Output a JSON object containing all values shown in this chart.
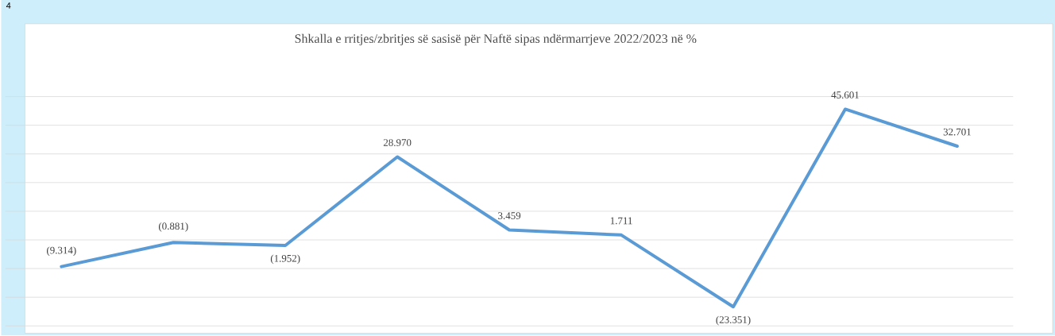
{
  "chart_data": {
    "type": "line",
    "title": "Shkalla e rritjes/zbritjes së sasisë për Naftë sipas ndërmarrjeve  2022/2023 në %",
    "annotations": [
      "4"
    ],
    "categories": [
      null,
      null,
      null,
      null,
      null,
      null,
      null,
      null,
      null
    ],
    "series": [
      {
        "color": "#5b9bd5",
        "values": [
          -9.314,
          -0.881,
          -1.952,
          28.97,
          3.459,
          1.711,
          -23.351,
          45.601,
          32.701
        ],
        "value_labels": [
          "(9.314)",
          "(0.881)",
          "(1.952)",
          "28.970",
          "3.459",
          "1.711",
          "(23.351)",
          "45.601",
          "32.701"
        ]
      }
    ],
    "ylim": [
      -30,
      50
    ],
    "yticks": [
      {
        "value": -30,
        "label": null
      },
      {
        "value": -20,
        "label": null
      },
      {
        "value": -10,
        "label": null
      },
      {
        "value": 0,
        "label": null
      },
      {
        "value": 10,
        "label": null
      },
      {
        "value": 20,
        "label": null
      },
      {
        "value": 30,
        "label": null
      },
      {
        "value": 40,
        "label": null
      },
      {
        "value": 50,
        "label": null
      }
    ],
    "grid": "y",
    "marker": "none",
    "line_style": "solid"
  }
}
